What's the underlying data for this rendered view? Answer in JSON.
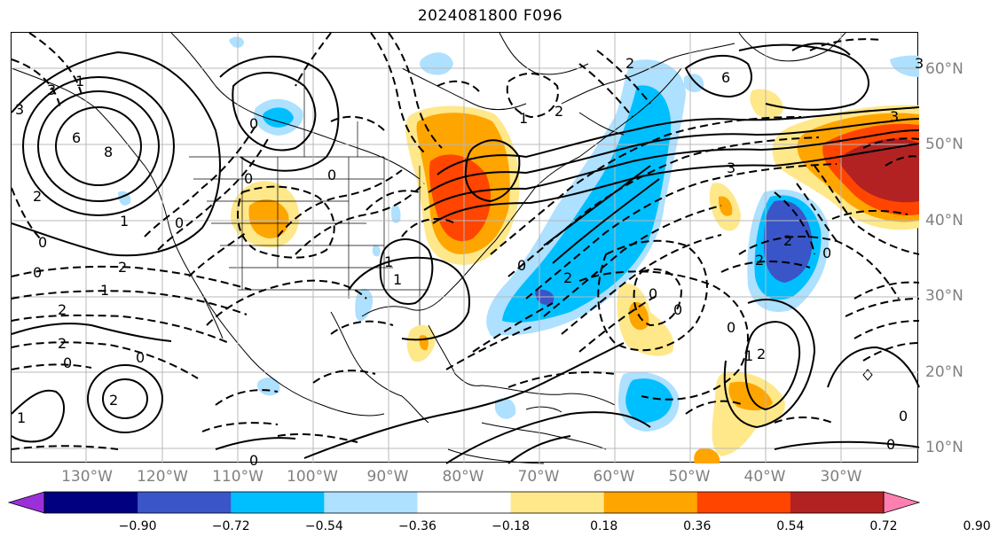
{
  "title": "2024081800 F096",
  "lon_labels": [
    "130°W",
    "120°W",
    "110°W",
    "100°W",
    "90°W",
    "80°W",
    "70°W",
    "60°W",
    "50°W",
    "40°W",
    "30°W"
  ],
  "lat_labels": [
    "60°N",
    "50°N",
    "40°N",
    "30°N",
    "20°N",
    "10°N"
  ],
  "colorbar": {
    "colors": [
      "#9b30d9",
      "#000080",
      "#3a55c8",
      "#00bfff",
      "#aee0ff",
      "#ffffff",
      "#ffe88a",
      "#ffa500",
      "#ff4500",
      "#b22222",
      "#ff80b0"
    ],
    "ticks": [
      "−0.90",
      "−0.72",
      "−0.54",
      "−0.36",
      "−0.18",
      "0.18",
      "0.36",
      "0.54",
      "0.72",
      "0.90"
    ]
  },
  "contour_labels": [
    "8",
    "6",
    "3",
    "1",
    "3",
    "0",
    "1",
    "2",
    "1",
    "0",
    "2",
    "2",
    "0",
    "1",
    "2",
    "0",
    "6",
    "1",
    "2",
    "3",
    "2",
    "0",
    "2",
    "3",
    "1",
    "2",
    "0",
    "0",
    "0",
    "0",
    "0",
    "2",
    "0",
    "0",
    "0",
    "0",
    "1",
    "2",
    "0",
    "0",
    "2",
    "3",
    "1"
  ]
}
